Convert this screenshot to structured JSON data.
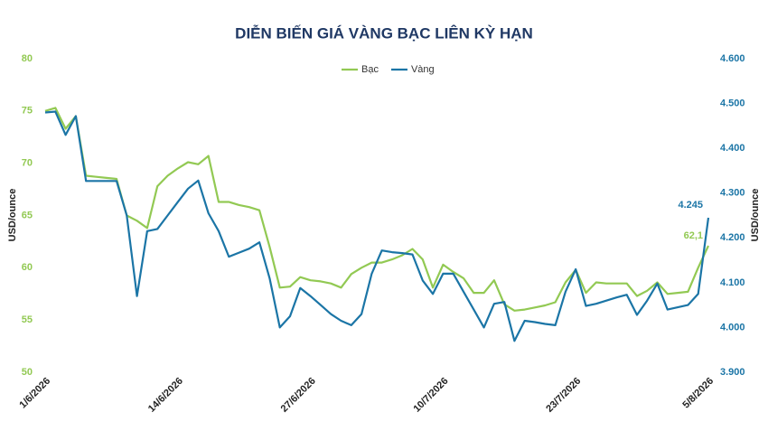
{
  "chart_data": {
    "type": "line",
    "title": "DIỄN BIẾN GIÁ VÀNG BẠC LIÊN KỲ HẠN",
    "y_label": "USD/ounce",
    "y2_label": "USD/ounce",
    "categories": [
      "1/6/2026",
      null,
      null,
      null,
      null,
      null,
      null,
      null,
      null,
      null,
      null,
      null,
      null,
      "14/6/2026",
      null,
      null,
      null,
      null,
      null,
      null,
      null,
      null,
      null,
      null,
      null,
      null,
      "27/6/2026",
      null,
      null,
      null,
      null,
      null,
      null,
      null,
      null,
      null,
      null,
      null,
      null,
      "10/7/2026",
      null,
      null,
      null,
      null,
      null,
      null,
      null,
      null,
      null,
      null,
      null,
      null,
      "23/7/2026",
      null,
      null,
      null,
      null,
      null,
      null,
      null,
      null,
      null,
      null,
      null,
      null,
      "5/8/2026"
    ],
    "series": [
      {
        "name": "Bạc",
        "color": "#92c953",
        "axis": "y",
        "values": [
          75.0,
          75.3,
          73.3,
          74.5,
          68.8,
          68.7,
          68.6,
          68.5,
          65.0,
          64.5,
          63.8,
          67.8,
          68.8,
          69.5,
          70.1,
          69.9,
          70.7,
          66.3,
          66.3,
          66.0,
          65.8,
          65.5,
          62.0,
          58.1,
          58.2,
          59.1,
          58.8,
          58.7,
          58.5,
          58.1,
          59.4,
          60.0,
          60.5,
          60.5,
          60.8,
          61.2,
          61.8,
          60.8,
          58.1,
          60.3,
          59.6,
          59.0,
          57.6,
          57.6,
          58.8,
          56.5,
          55.9,
          56.0,
          56.2,
          56.4,
          56.7,
          58.6,
          59.8,
          57.6,
          58.6,
          58.5,
          58.5,
          58.5,
          57.3,
          57.8,
          58.6,
          57.5,
          57.6,
          57.7,
          60.0,
          62.1
        ],
        "value_labels": {
          "65": "62,1"
        }
      },
      {
        "name": "Vàng",
        "color": "#1b75a6",
        "axis": "y2",
        "values": [
          4480,
          4482,
          4430,
          4472,
          4327,
          4327,
          4327,
          4327,
          4250,
          4070,
          4215,
          4220,
          4250,
          4280,
          4310,
          4328,
          4255,
          4215,
          4158,
          4167,
          4176,
          4190,
          4110,
          4000,
          4025,
          4088,
          4070,
          4050,
          4030,
          4015,
          4005,
          4030,
          4120,
          4172,
          4168,
          4166,
          4163,
          4105,
          4075,
          4120,
          4120,
          4080,
          4040,
          4000,
          4053,
          4057,
          3970,
          4015,
          4012,
          4008,
          4005,
          4080,
          4130,
          4048,
          4053,
          4060,
          4067,
          4073,
          4028,
          4060,
          4098,
          4040,
          4045,
          4050,
          4075,
          4245
        ],
        "value_labels": {
          "65": "4.245"
        }
      }
    ],
    "ylim": [
      50,
      80
    ],
    "yticks": [
      50,
      55,
      60,
      65,
      70,
      75,
      80
    ],
    "y2lim": [
      3900,
      4600
    ],
    "y2ticks": [
      {
        "value": 3900,
        "label": "3.900"
      },
      {
        "value": 4000,
        "label": "4.000"
      },
      {
        "value": 4100,
        "label": "4.100"
      },
      {
        "value": 4200,
        "label": "4.200"
      },
      {
        "value": 4300,
        "label": "4.300"
      },
      {
        "value": 4400,
        "label": "4.400"
      },
      {
        "value": 4500,
        "label": "4.500"
      },
      {
        "value": 4600,
        "label": "4.600"
      }
    ],
    "legend": "top"
  }
}
